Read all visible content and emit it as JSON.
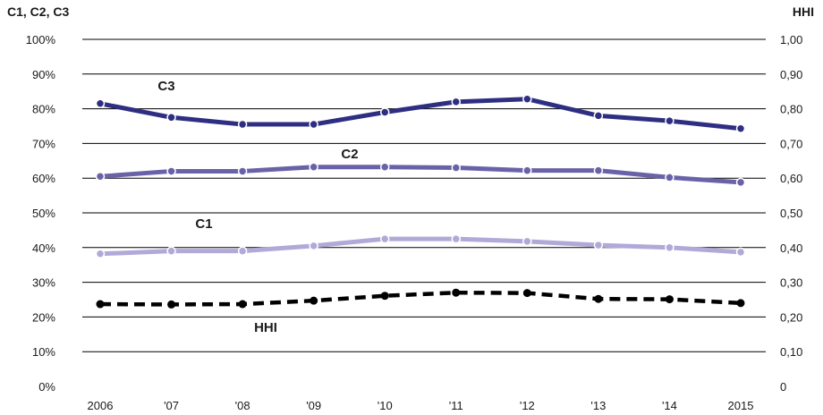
{
  "chart_data": {
    "type": "line",
    "left_axis_title": "C1, C2, C3",
    "right_axis_title": "HHI",
    "categories": [
      "2006",
      "'07",
      "'08",
      "'09",
      "'10",
      "'11",
      "'12",
      "'13",
      "'14",
      "2015"
    ],
    "left_ticks": [
      "0%",
      "10%",
      "20%",
      "30%",
      "40%",
      "50%",
      "60%",
      "70%",
      "80%",
      "90%",
      "100%"
    ],
    "right_ticks": [
      "0",
      "0,10",
      "0,20",
      "0,30",
      "0,40",
      "0,50",
      "0,60",
      "0,70",
      "0,80",
      "0,90",
      "1,00"
    ],
    "ylim": [
      0,
      100
    ],
    "y2lim": [
      0,
      1
    ],
    "grid": true,
    "series": [
      {
        "name": "C3",
        "axis": "left",
        "color": "#2e2e82",
        "dashed": false,
        "values": [
          81.5,
          77.5,
          75.5,
          75.5,
          79,
          82,
          82.8,
          78,
          76.5,
          74.3
        ]
      },
      {
        "name": "C2",
        "axis": "left",
        "color": "#6a62a8",
        "dashed": false,
        "values": [
          60.5,
          62,
          62,
          63.2,
          63.2,
          63,
          62.2,
          62.2,
          60.2,
          58.8
        ]
      },
      {
        "name": "C1",
        "axis": "left",
        "color": "#b0aad8",
        "dashed": false,
        "values": [
          38.2,
          39,
          39,
          40.5,
          42.5,
          42.5,
          41.8,
          40.7,
          40,
          38.7
        ]
      },
      {
        "name": "HHI",
        "axis": "right",
        "color": "#000000",
        "dashed": true,
        "values": [
          0.237,
          0.236,
          0.237,
          0.247,
          0.261,
          0.27,
          0.269,
          0.252,
          0.251,
          0.24
        ]
      }
    ]
  }
}
